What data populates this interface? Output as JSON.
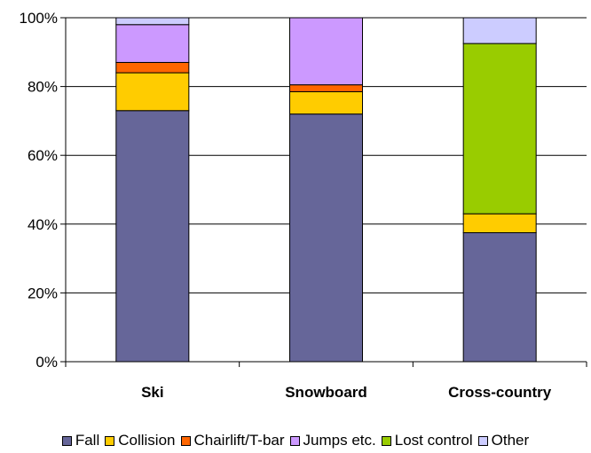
{
  "chart_data": {
    "type": "bar",
    "stacked": true,
    "percent_stacked": true,
    "categories": [
      "Ski",
      "Snowboard",
      "Cross-country"
    ],
    "series": [
      {
        "name": "Fall",
        "color": "#666699",
        "values": [
          73,
          72,
          37.5
        ]
      },
      {
        "name": "Collision",
        "color": "#FFCC00",
        "values": [
          11,
          6.5,
          5.5
        ]
      },
      {
        "name": "Chairlift/T-bar",
        "color": "#FF6600",
        "values": [
          3,
          2,
          0
        ]
      },
      {
        "name": "Jumps etc.",
        "color": "#CC99FF",
        "values": [
          11,
          19.5,
          0
        ]
      },
      {
        "name": "Lost control",
        "color": "#99CC00",
        "values": [
          0,
          0,
          49.5
        ]
      },
      {
        "name": "Other",
        "color": "#CCCCFF",
        "values": [
          2,
          0,
          7.5
        ]
      }
    ],
    "y_ticks": [
      "0%",
      "20%",
      "40%",
      "60%",
      "80%",
      "100%"
    ],
    "ylim": [
      0,
      100
    ],
    "grid": true,
    "legend_position": "bottom"
  }
}
